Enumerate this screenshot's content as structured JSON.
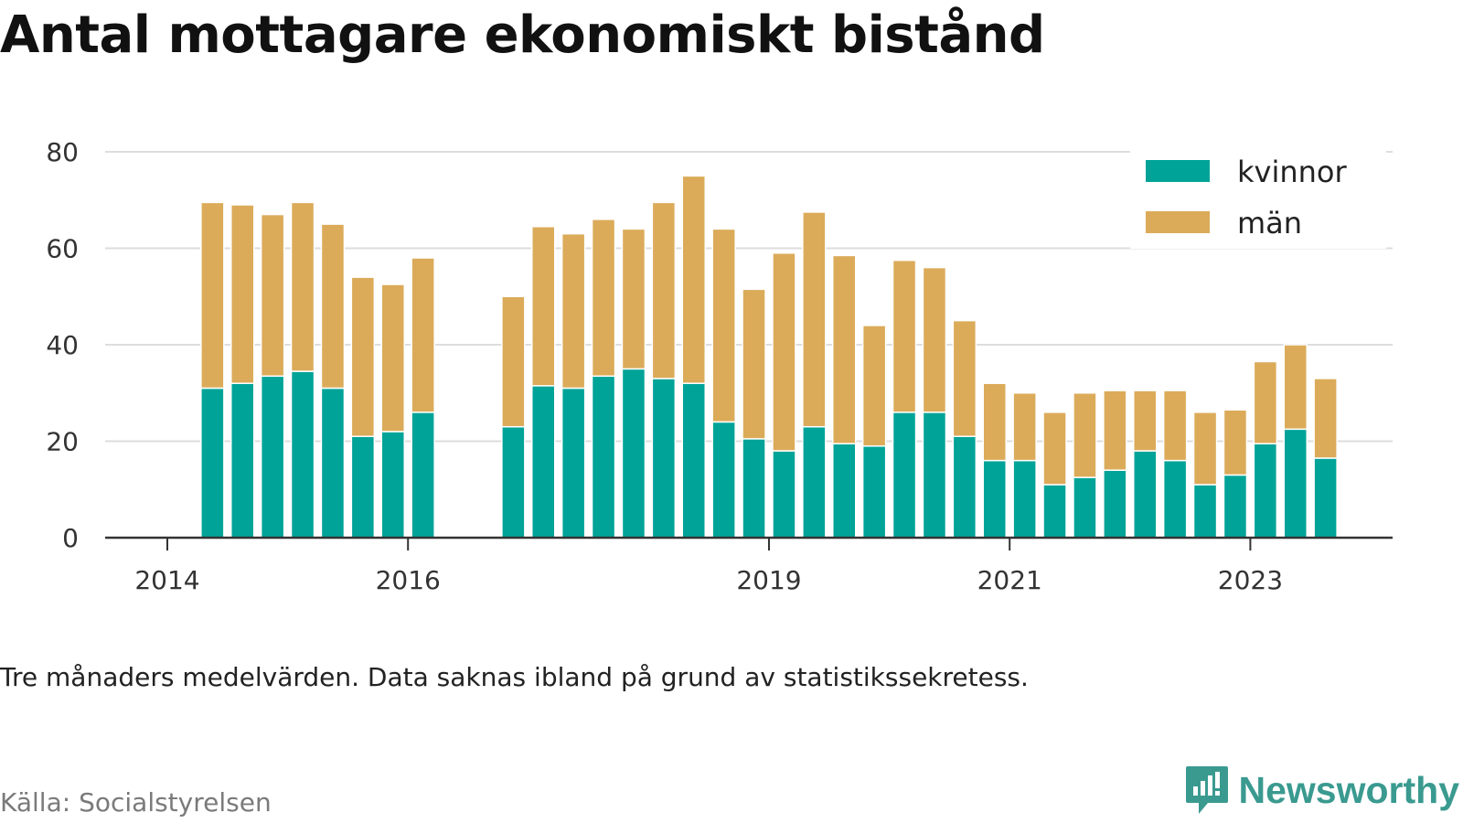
{
  "title": "Antal mottagare ekonomiskt bistånd",
  "note": "Tre månaders medelvärden. Data saknas ibland på grund av statistikssekretess.",
  "source": "Källa: Socialstyrelsen",
  "brand": {
    "name": "Newsworthy",
    "icon": "newsworthy-logo-icon",
    "color": "#3a9a90"
  },
  "chart_data": {
    "type": "bar",
    "stacked": true,
    "grid": true,
    "legend_position": "top-right",
    "ylim": [
      0,
      80
    ],
    "yticks": [
      0,
      20,
      40,
      60,
      80
    ],
    "xticks": [
      {
        "label": "2014",
        "slot": 0
      },
      {
        "label": "2016",
        "slot": 8
      },
      {
        "label": "2019",
        "slot": 20
      },
      {
        "label": "2021",
        "slot": 28
      },
      {
        "label": "2023",
        "slot": 36
      }
    ],
    "series": [
      {
        "name": "kvinnor",
        "color": "#00a398",
        "values": [
          null,
          31,
          32,
          33.5,
          34.5,
          31,
          21,
          22,
          26,
          null,
          null,
          23,
          31.5,
          31,
          33.5,
          35,
          33,
          32,
          24,
          20.5,
          18,
          23,
          19.5,
          19,
          26,
          26,
          21,
          16,
          16,
          11,
          12.5,
          14,
          18,
          16,
          11,
          13,
          19.5,
          22.5,
          16.5
        ]
      },
      {
        "name": "män",
        "color": "#dbab5a",
        "values": [
          null,
          38.5,
          37,
          33.5,
          35,
          34,
          33,
          30.5,
          32,
          null,
          null,
          27,
          33,
          32,
          32.5,
          29,
          36.5,
          43,
          40,
          31,
          41,
          44.5,
          39,
          25,
          31.5,
          30,
          24,
          16,
          14,
          15,
          17.5,
          16.5,
          12.5,
          14.5,
          15,
          13.5,
          17,
          17.5,
          16.5
        ]
      }
    ]
  }
}
